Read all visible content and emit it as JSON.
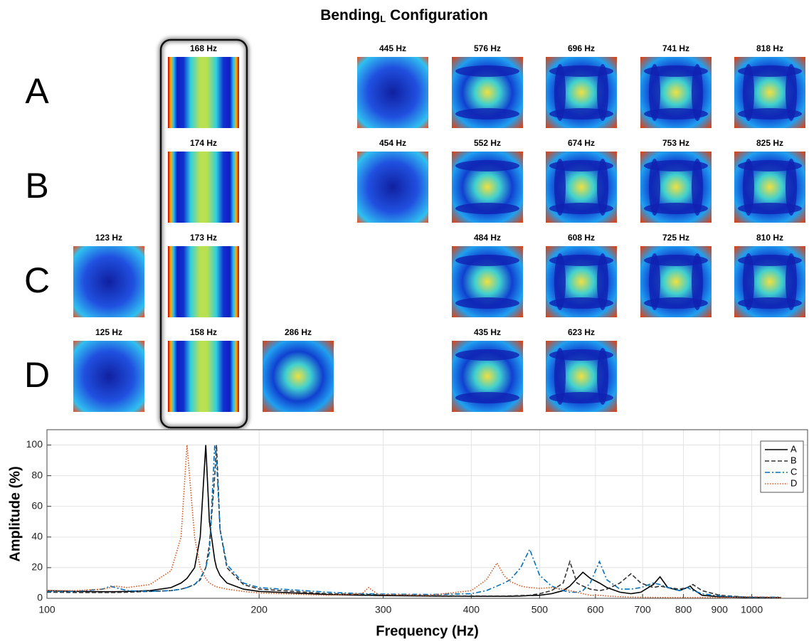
{
  "figure": {
    "title": {
      "text": "Bending",
      "subscript": "L",
      "suffix": "Configuration"
    },
    "rows": [
      {
        "label": "A",
        "modes": [
          null,
          "168 Hz",
          null,
          "445 Hz",
          "576 Hz",
          "696 Hz",
          "741 Hz",
          "818 Hz"
        ]
      },
      {
        "label": "B",
        "modes": [
          null,
          "174 Hz",
          null,
          "454 Hz",
          "552 Hz",
          "674 Hz",
          "753 Hz",
          "825 Hz"
        ]
      },
      {
        "label": "C",
        "modes": [
          "123 Hz",
          "173 Hz",
          null,
          null,
          "484 Hz",
          "608 Hz",
          "725 Hz",
          "810 Hz"
        ]
      },
      {
        "label": "D",
        "modes": [
          "125 Hz",
          "158 Hz",
          "286 Hz",
          null,
          "435 Hz",
          "623 Hz",
          null,
          null
        ]
      }
    ]
  },
  "chart_data": {
    "type": "line",
    "xlabel": "Frequency (Hz)",
    "ylabel": "Amplitude (%)",
    "xscale": "log",
    "grid": true,
    "legend": "upper right",
    "xlim": [
      100,
      1200
    ],
    "xticks": [
      100,
      200,
      300,
      400,
      500,
      600,
      700,
      800,
      900,
      1000
    ],
    "ylim": [
      0,
      110
    ],
    "yticks": [
      0,
      20,
      40,
      60,
      80,
      100
    ],
    "x": [
      100,
      110,
      120,
      123,
      125,
      130,
      140,
      150,
      155,
      158,
      162,
      165,
      168,
      170,
      173,
      174,
      176,
      180,
      190,
      200,
      250,
      280,
      286,
      295,
      350,
      400,
      420,
      435,
      445,
      454,
      470,
      484,
      500,
      520,
      540,
      552,
      565,
      576,
      590,
      608,
      623,
      650,
      674,
      696,
      725,
      741,
      760,
      790,
      810,
      818,
      825,
      850,
      900,
      1000,
      1100
    ],
    "series": [
      {
        "name": "A",
        "color": "#000000",
        "dash": "solid",
        "values": [
          5,
          4.5,
          4.3,
          4.3,
          4.3,
          4.5,
          5,
          7,
          10,
          13,
          20,
          40,
          100,
          50,
          25,
          20,
          15,
          10,
          6,
          4.5,
          2.5,
          2,
          2,
          1.8,
          1.5,
          1.3,
          1.3,
          1.3,
          1.3,
          1.3,
          1.5,
          1.8,
          2,
          3,
          5,
          8,
          13,
          17,
          13,
          10,
          7,
          4,
          3,
          4,
          9,
          14,
          7,
          5,
          7,
          8,
          6,
          2,
          1,
          0.5,
          0.5
        ]
      },
      {
        "name": "B",
        "color": "#333333",
        "dash": "dashed",
        "values": [
          4,
          3.8,
          3.8,
          3.8,
          3.8,
          4,
          4.5,
          5,
          6,
          7,
          9,
          12,
          20,
          35,
          80,
          100,
          45,
          20,
          9,
          6,
          3,
          2.5,
          2.5,
          2.3,
          1.8,
          1.5,
          1.5,
          1.5,
          1.5,
          1.6,
          1.8,
          2,
          3,
          5,
          10,
          24,
          10,
          8,
          6,
          5,
          6,
          10,
          16,
          10,
          7,
          8,
          7,
          6,
          7,
          8,
          9,
          5,
          2,
          0.5,
          0.5
        ]
      },
      {
        "name": "C",
        "color": "#0072bd",
        "dash": "dashdot",
        "values": [
          4.5,
          4.5,
          6,
          8,
          7,
          5,
          4.5,
          5,
          6,
          7,
          9,
          13,
          20,
          30,
          100,
          90,
          45,
          22,
          10,
          7,
          4,
          3,
          3,
          2.8,
          2.5,
          3,
          5,
          8,
          10,
          12,
          20,
          32,
          15,
          8,
          5,
          4,
          4,
          5,
          10,
          24,
          12,
          6,
          6,
          7,
          10,
          9,
          7,
          5,
          7,
          6,
          5,
          3,
          1.5,
          0.8,
          0.8
        ]
      },
      {
        "name": "D",
        "color": "#d95319",
        "dash": "dotted",
        "values": [
          5,
          5,
          6,
          7,
          8,
          7,
          9,
          18,
          40,
          100,
          40,
          20,
          13,
          10,
          8,
          7.5,
          7,
          6,
          4.5,
          3.5,
          2,
          3,
          7,
          2.5,
          2,
          5,
          12,
          23,
          15,
          11,
          8,
          7,
          6.5,
          7,
          6,
          5,
          4,
          3,
          2,
          2,
          1.5,
          1,
          0.8,
          0.7,
          0.6,
          0.6,
          0.5,
          0.5,
          0.5,
          0.5,
          0.5,
          0.5,
          0.5,
          1,
          0.5
        ]
      }
    ]
  }
}
